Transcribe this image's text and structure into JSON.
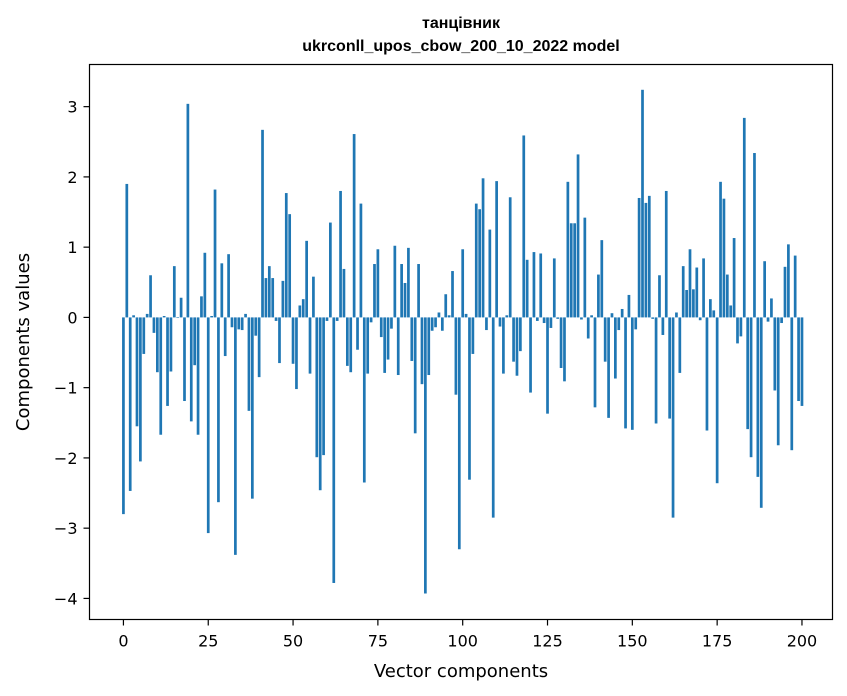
{
  "chart_data": {
    "type": "bar",
    "title_lines": [
      "танцівник",
      "ukrconll_upos_cbow_200_10_2022 model"
    ],
    "xlabel": "Vector components",
    "ylabel": "Components values",
    "xlim": [
      -10,
      209
    ],
    "ylim": [
      -4.3,
      3.6
    ],
    "xticks": [
      0,
      25,
      50,
      75,
      100,
      125,
      150,
      175,
      200
    ],
    "yticks": [
      -4,
      -3,
      -2,
      -1,
      0,
      1,
      2,
      3
    ],
    "grid": false,
    "bar_color": "#1f77b4",
    "values": [
      -2.8,
      1.9,
      -2.47,
      0.03,
      -1.55,
      -2.05,
      -0.52,
      0.05,
      0.6,
      -0.22,
      -0.78,
      -1.67,
      0.02,
      -1.26,
      -0.77,
      0.73,
      0.0,
      0.28,
      -1.19,
      3.04,
      -1.48,
      -0.68,
      -1.67,
      0.3,
      0.92,
      -3.07,
      0.02,
      1.82,
      -2.63,
      0.77,
      -0.55,
      0.9,
      -0.14,
      -3.38,
      -0.17,
      -0.18,
      0.05,
      -1.33,
      -2.58,
      -0.26,
      -0.85,
      2.67,
      0.56,
      0.73,
      0.56,
      -0.05,
      -0.65,
      0.52,
      1.77,
      1.47,
      -0.66,
      -1.02,
      0.17,
      0.26,
      1.09,
      -0.8,
      0.58,
      -1.99,
      -2.46,
      -1.96,
      -0.05,
      1.35,
      -3.78,
      -0.05,
      1.8,
      0.69,
      -0.69,
      -0.78,
      2.61,
      -0.46,
      1.62,
      -2.35,
      -0.8,
      -0.07,
      0.76,
      0.97,
      -0.28,
      -0.79,
      -0.6,
      -0.16,
      1.02,
      -0.82,
      0.76,
      0.49,
      0.99,
      -0.62,
      -1.65,
      0.76,
      -0.95,
      -3.93,
      -0.82,
      -0.19,
      -0.14,
      0.07,
      -0.19,
      0.33,
      0.03,
      0.66,
      -1.1,
      -3.3,
      0.97,
      0.05,
      -2.31,
      -0.52,
      1.62,
      1.54,
      1.98,
      -0.18,
      1.25,
      -2.85,
      1.94,
      -0.13,
      -0.8,
      0.03,
      1.71,
      -0.63,
      -0.83,
      -0.48,
      2.59,
      0.82,
      -1.07,
      0.93,
      -0.05,
      0.91,
      -0.08,
      -1.37,
      -0.15,
      0.84,
      -0.02,
      -0.72,
      -0.91,
      1.93,
      1.34,
      1.34,
      2.32,
      -0.03,
      1.42,
      -0.3,
      0.03,
      -1.28,
      0.61,
      1.1,
      -0.63,
      -1.43,
      0.06,
      -0.87,
      -0.18,
      0.12,
      -1.58,
      0.32,
      -1.6,
      -0.17,
      1.7,
      3.24,
      1.63,
      1.73,
      -0.02,
      -1.51,
      0.6,
      -0.25,
      1.8,
      -1.44,
      -2.85,
      0.07,
      -0.79,
      0.73,
      0.39,
      0.97,
      0.4,
      0.71,
      -0.04,
      0.84,
      -1.61,
      0.26,
      0.1,
      -2.36,
      1.93,
      1.69,
      0.61,
      0.17,
      1.13,
      -0.37,
      -0.27,
      2.84,
      -1.59,
      -1.99,
      2.34,
      -2.27,
      -2.71,
      0.8,
      -0.06,
      0.27,
      -1.04,
      -1.82,
      -0.08,
      0.72,
      1.04,
      -1.89,
      0.88,
      -1.19,
      -1.26
    ]
  }
}
